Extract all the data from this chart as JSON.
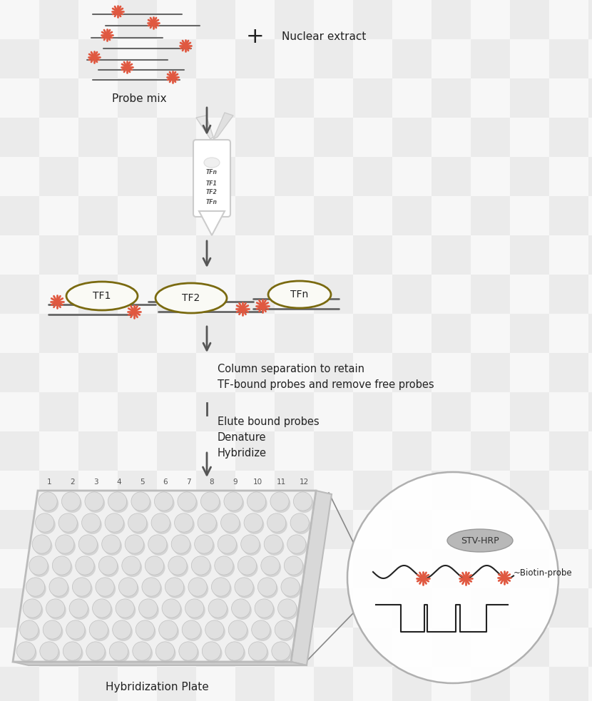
{
  "bg_checker_light": "#f0f0f0",
  "bg_checker_dark": "#d8d8d8",
  "probe_color": "#e05840",
  "line_color": "#666666",
  "arrow_color": "#555555",
  "tf_fill": "#fafaf5",
  "tf_border": "#7a6a10",
  "text_color": "#222222",
  "label_probe_mix": "Probe mix",
  "label_nuclear": "Nuclear extract",
  "label_column_sep": "Column separation to retain\nTF-bound probes and remove free probes",
  "label_elute": "Elute bound probes\nDenature\nHybridize",
  "label_hybridization": "Hybridization Plate",
  "label_stv": "STV-HRP",
  "label_biotin": "Biotin-probe",
  "tf_labels": [
    "TF1",
    "TF2",
    "TFn"
  ],
  "col_numbers": [
    "1",
    "2",
    "3",
    "4",
    "5",
    "6",
    "7",
    "8",
    "9",
    "10",
    "11",
    "12"
  ],
  "checker_size": 55
}
